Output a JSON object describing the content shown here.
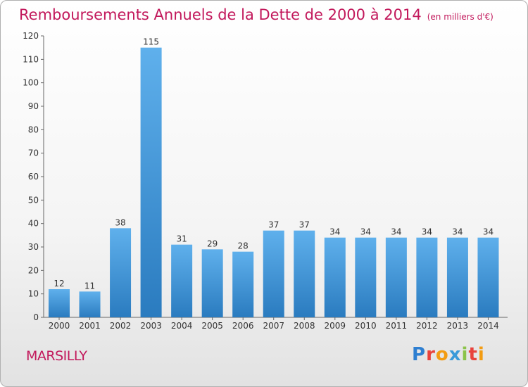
{
  "title": "Remboursements Annuels de la Dette de 2000 à 2014",
  "subtitle": "(en milliers d'€)",
  "city": "MARSILLY",
  "logo": {
    "letters": [
      "P",
      "r",
      "o",
      "x",
      "i",
      "t",
      "i"
    ],
    "colors": [
      "#2e7fd1",
      "#e8423c",
      "#f39c12",
      "#3a9ad9",
      "#8bc34a",
      "#e8423c",
      "#f39c12"
    ]
  },
  "colors": {
    "bar_light": "#5fb0ec",
    "bar_dark": "#2a7bbf",
    "title": "#c2185b"
  },
  "chart_data": {
    "type": "bar",
    "categories": [
      "2000",
      "2001",
      "2002",
      "2003",
      "2004",
      "2005",
      "2006",
      "2007",
      "2008",
      "2009",
      "2010",
      "2011",
      "2012",
      "2013",
      "2014"
    ],
    "values": [
      12,
      11,
      38,
      115,
      31,
      29,
      28,
      37,
      37,
      34,
      34,
      34,
      34,
      34,
      34
    ],
    "title": "Remboursements Annuels de la Dette de 2000 à 2014",
    "xlabel": "",
    "ylabel": "",
    "ylim": [
      0,
      120
    ],
    "yticks": [
      0,
      10,
      20,
      30,
      40,
      50,
      60,
      70,
      80,
      90,
      100,
      110,
      120
    ],
    "grid": false,
    "data_labels": true
  }
}
